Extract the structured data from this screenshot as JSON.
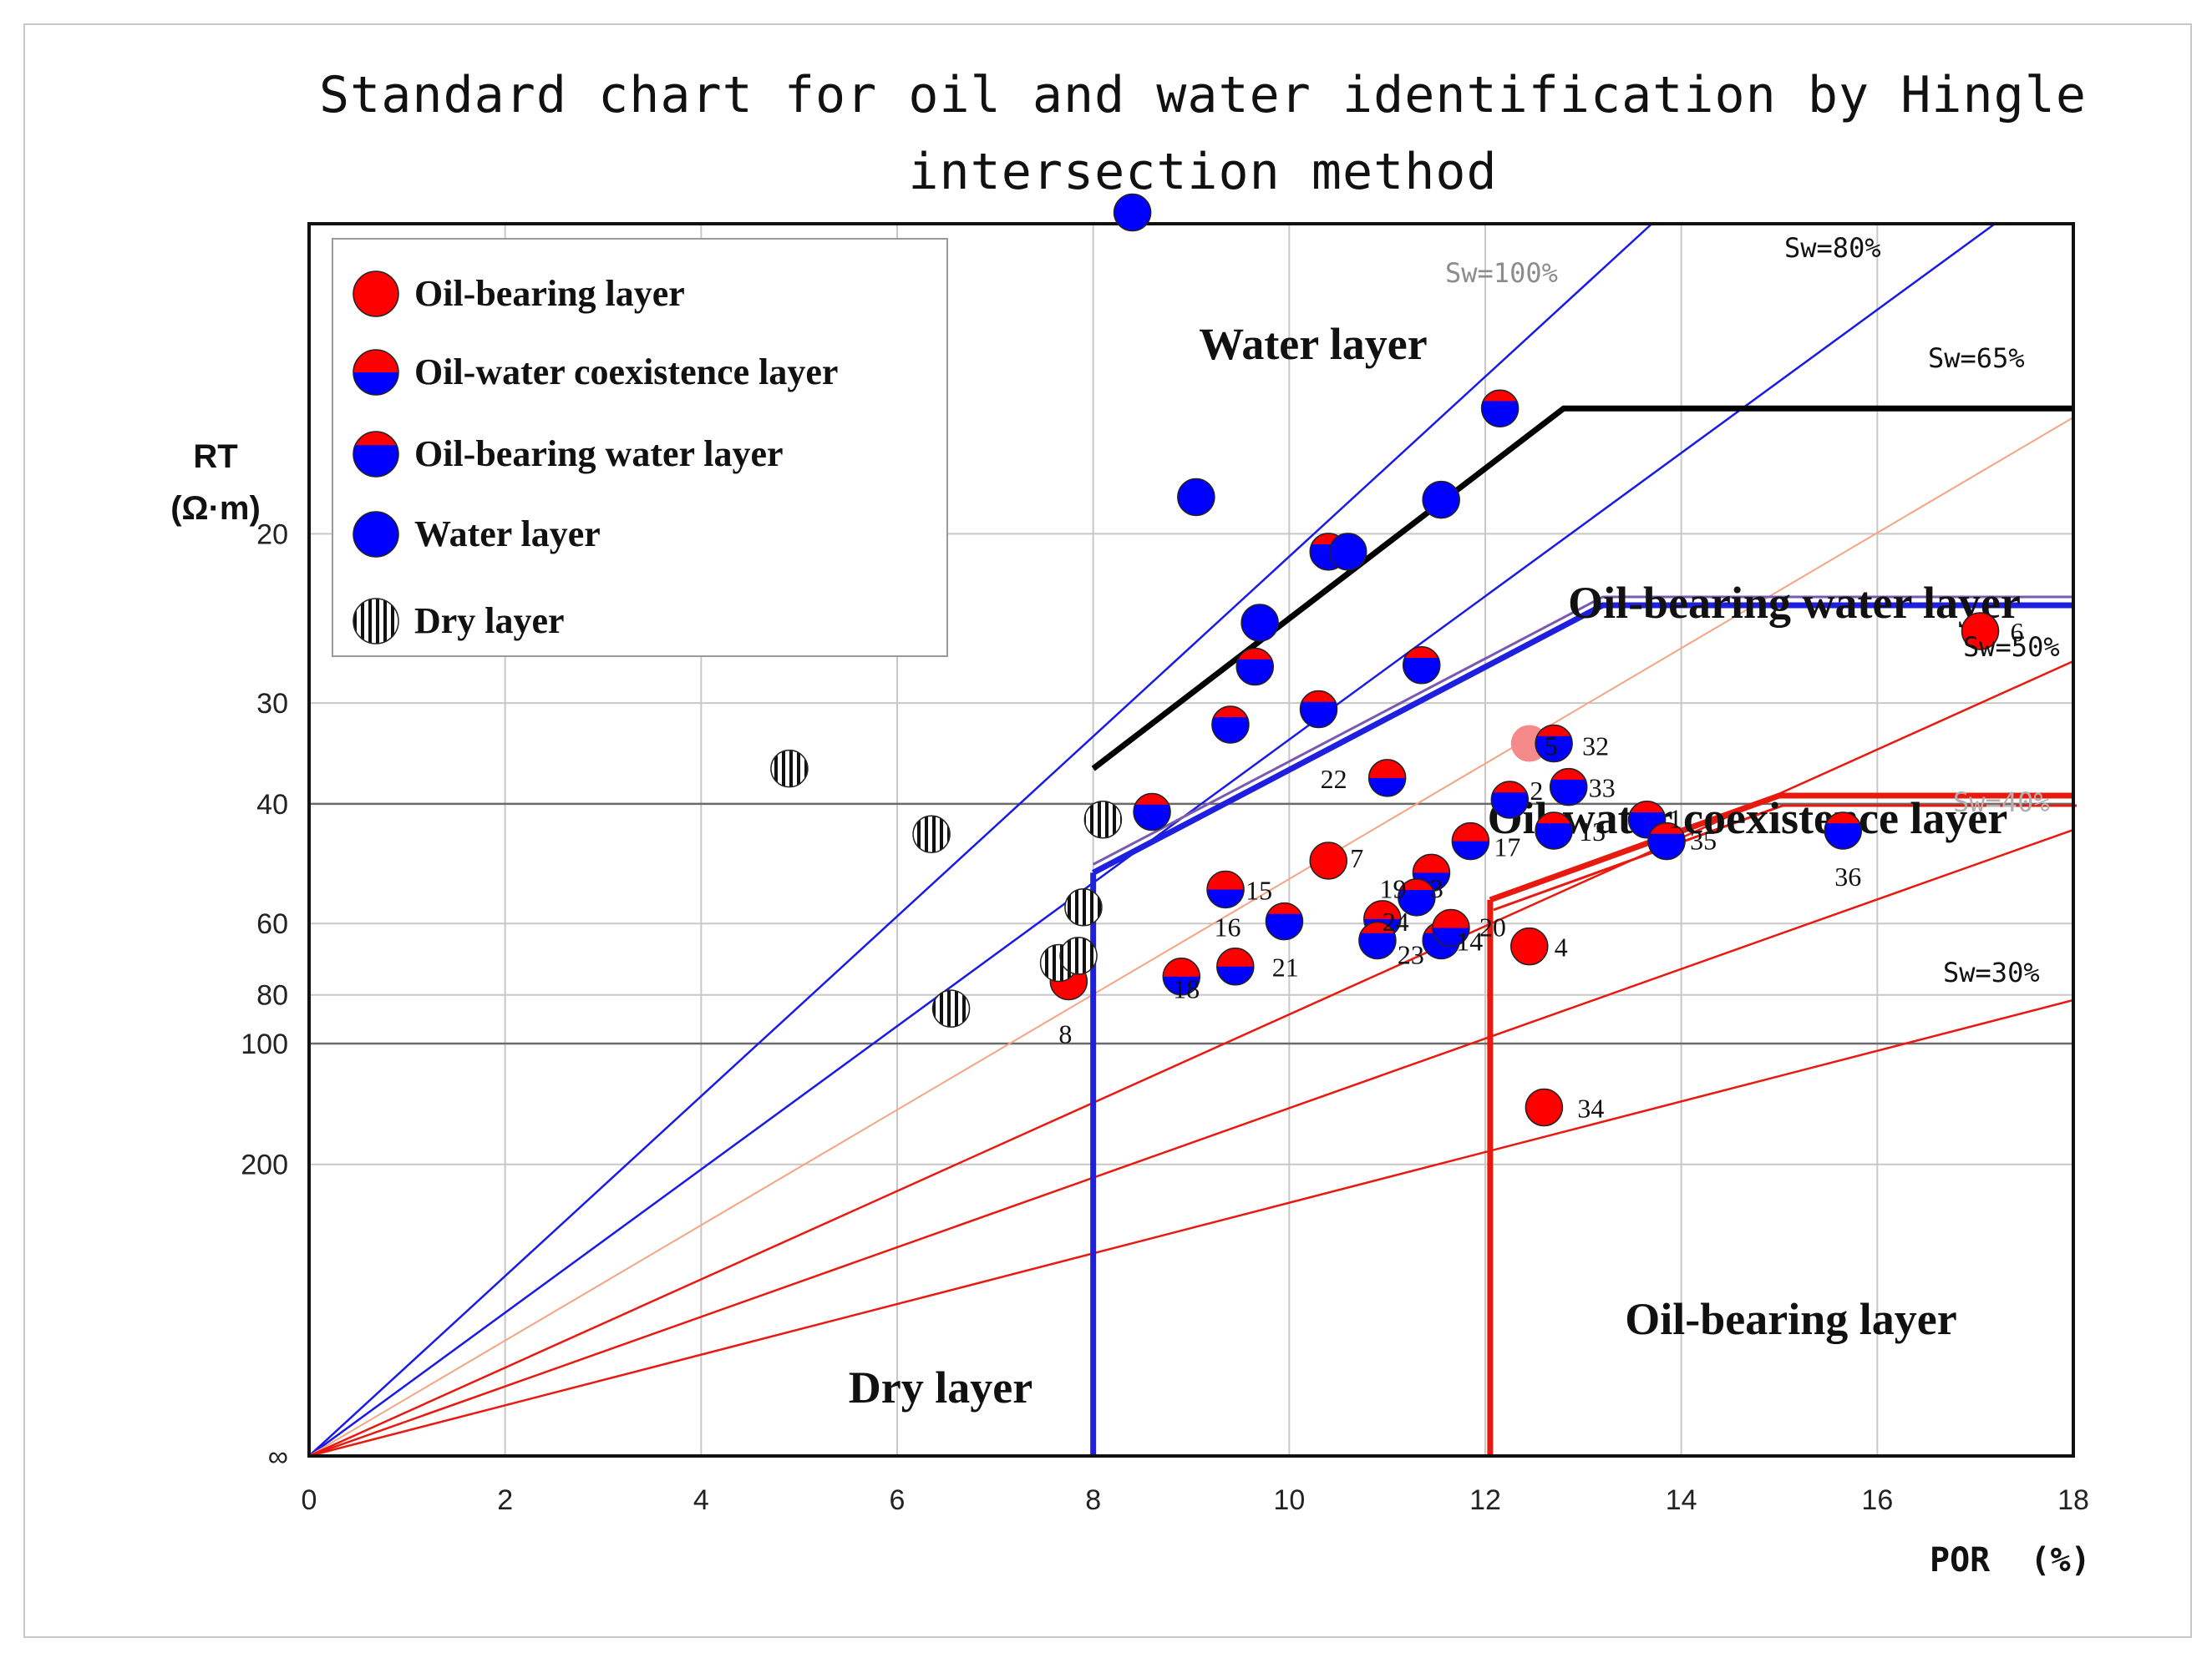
{
  "chart_data": {
    "type": "scatter",
    "title_line1": "Standard chart for oil and water identification by Hingle",
    "title_line2": "intersection method",
    "xlabel": "POR  (%)",
    "ylabel": "RT",
    "ylabel_unit": "(Ω·m)",
    "xlim": [
      0,
      18
    ],
    "x_ticks": [
      0,
      2,
      4,
      6,
      8,
      10,
      12,
      14,
      16,
      18
    ],
    "y_scale": "hingle (1/sqrt(RT))",
    "y_ticks": [
      {
        "value": 20,
        "label": "20"
      },
      {
        "value": 30,
        "label": "30"
      },
      {
        "value": 40,
        "label": "40"
      },
      {
        "value": 60,
        "label": "60"
      },
      {
        "value": 80,
        "label": "80"
      },
      {
        "value": 100,
        "label": "100"
      },
      {
        "value": 200,
        "label": "200"
      },
      {
        "value": "inf",
        "label": "∞"
      }
    ],
    "legend": [
      {
        "type": "oil",
        "label": "Oil-bearing layer"
      },
      {
        "type": "coexist",
        "label": "Oil-water coexistence layer"
      },
      {
        "type": "oilwater",
        "label": "Oil-bearing water layer"
      },
      {
        "type": "water",
        "label": "Water layer"
      },
      {
        "type": "dry",
        "label": "Dry layer"
      }
    ],
    "sw_lines": [
      {
        "label": "Sw=100%",
        "color": "#1a1ae6",
        "end_por": 13.7
      },
      {
        "label": "Sw=80%",
        "color": "#1a1ae6",
        "end_por": 17.2
      },
      {
        "label": "Sw=65%",
        "color": "#f4a582",
        "end_por": 18
      },
      {
        "label": "Sw=50%",
        "color": "#e8190f",
        "end_por": 18
      },
      {
        "label": "Sw=40%",
        "color": "#e8190f",
        "end_por": 18
      },
      {
        "label": "Sw=30%",
        "color": "#e8190f",
        "end_por": 18
      }
    ],
    "region_labels": [
      {
        "text": "Water layer"
      },
      {
        "text": "Oil-bearing water layer"
      },
      {
        "text": "Oil-water coexistence layer"
      },
      {
        "text": "Oil-bearing layer"
      },
      {
        "text": "Dry layer"
      }
    ],
    "boundaries": [
      {
        "name": "oil-bearing-water-boundary",
        "color": "#000000",
        "points": [
          [
            8.0,
            36
          ],
          [
            12.8,
            15.5
          ],
          [
            18,
            15.5
          ]
        ]
      },
      {
        "name": "coexistence-boundary",
        "color": "#1f1fe0",
        "points": [
          [
            8.0,
            50
          ],
          [
            13.2,
            23.5
          ],
          [
            18,
            23.5
          ]
        ]
      },
      {
        "name": "dry-cutoff",
        "color": "#1f1fe0",
        "points": [
          [
            8.0,
            50
          ],
          [
            8.0,
            "inf"
          ]
        ]
      },
      {
        "name": "oil-bearing-boundary",
        "color": "#e8190f",
        "points": [
          [
            12.05,
            55
          ],
          [
            15.0,
            39
          ],
          [
            18,
            39
          ]
        ]
      },
      {
        "name": "oil-cutoff",
        "color": "#e8190f",
        "points": [
          [
            12.05,
            55
          ],
          [
            12.05,
            "inf"
          ]
        ]
      }
    ],
    "points": [
      {
        "por": 8.4,
        "rt": 11,
        "type": "water",
        "label": ""
      },
      {
        "por": 9.05,
        "rt": 18.5,
        "type": "water",
        "label": ""
      },
      {
        "por": 12.15,
        "rt": 15.5,
        "type": "oilwater",
        "label": ""
      },
      {
        "por": 11.55,
        "rt": 18.6,
        "type": "water",
        "label": ""
      },
      {
        "por": 10.4,
        "rt": 20.8,
        "type": "oilwater",
        "label": ""
      },
      {
        "por": 10.6,
        "rt": 20.8,
        "type": "water",
        "label": ""
      },
      {
        "por": 9.7,
        "rt": 24.5,
        "type": "water",
        "label": ""
      },
      {
        "por": 9.65,
        "rt": 27.3,
        "type": "oilwater",
        "label": ""
      },
      {
        "por": 11.35,
        "rt": 27.2,
        "type": "oilwater",
        "label": ""
      },
      {
        "por": 9.4,
        "rt": 31.8,
        "type": "oilwater",
        "label": ""
      },
      {
        "por": 10.3,
        "rt": 30.5,
        "type": "oilwater",
        "label": ""
      },
      {
        "por": 11.0,
        "rt": 37.0,
        "type": "coexist",
        "label": "22"
      },
      {
        "por": 12.45,
        "rt": 33.5,
        "type": "oil-faded",
        "label": "5"
      },
      {
        "por": 12.7,
        "rt": 33.5,
        "type": "oilwater",
        "label": "32"
      },
      {
        "por": 12.85,
        "rt": 38.0,
        "type": "oilwater",
        "label": "33"
      },
      {
        "por": 8.6,
        "rt": 41.0,
        "type": "oilwater",
        "label": ""
      },
      {
        "por": 12.25,
        "rt": 39.5,
        "type": "oilwater",
        "label": "2"
      },
      {
        "por": 12.7,
        "rt": 43.5,
        "type": "oilwater",
        "label": "13"
      },
      {
        "por": 13.65,
        "rt": 42.0,
        "type": "oilwater",
        "label": "1"
      },
      {
        "por": 13.85,
        "rt": 45.0,
        "type": "oilwater",
        "label": "35"
      },
      {
        "por": 15.65,
        "rt": 43.5,
        "type": "oilwater",
        "label": "36"
      },
      {
        "por": 17.05,
        "rt": 25.0,
        "type": "oil",
        "label": "6"
      },
      {
        "por": 11.85,
        "rt": 45.0,
        "type": "coexist",
        "label": "17"
      },
      {
        "por": 10.4,
        "rt": 48.0,
        "type": "oil",
        "label": "7"
      },
      {
        "por": 11.45,
        "rt": 50.0,
        "type": "coexist",
        "label": "19"
      },
      {
        "por": 11.3,
        "rt": 54.5,
        "type": "oilwater",
        "label": "3"
      },
      {
        "por": 9.35,
        "rt": 53.0,
        "type": "coexist",
        "label": "15"
      },
      {
        "por": 9.95,
        "rt": 59.5,
        "type": "oilwater",
        "label": "16"
      },
      {
        "por": 10.95,
        "rt": 59.0,
        "type": "coexist",
        "label": "24"
      },
      {
        "por": 10.9,
        "rt": 64.0,
        "type": "oilwater",
        "label": "23"
      },
      {
        "por": 11.55,
        "rt": 64.0,
        "type": "oilwater",
        "label": "14"
      },
      {
        "por": 11.65,
        "rt": 61.0,
        "type": "coexist",
        "label": "20"
      },
      {
        "por": 12.45,
        "rt": 65.5,
        "type": "oil",
        "label": "4"
      },
      {
        "por": 9.45,
        "rt": 71.0,
        "type": "coexist",
        "label": "21"
      },
      {
        "por": 8.9,
        "rt": 74.0,
        "type": "coexist",
        "label": "18"
      },
      {
        "por": 7.75,
        "rt": 75.5,
        "type": "oil",
        "label": "8"
      },
      {
        "por": 12.6,
        "rt": 140.0,
        "type": "oil",
        "label": "34"
      },
      {
        "por": 4.9,
        "rt": 36.0,
        "type": "dry",
        "label": ""
      },
      {
        "por": 6.35,
        "rt": 44.0,
        "type": "dry",
        "label": ""
      },
      {
        "por": 8.1,
        "rt": 42.0,
        "type": "dry",
        "label": ""
      },
      {
        "por": 7.9,
        "rt": 56.5,
        "type": "dry",
        "label": ""
      },
      {
        "por": 7.65,
        "rt": 70.0,
        "type": "dry",
        "label": ""
      },
      {
        "por": 7.85,
        "rt": 68.0,
        "type": "dry",
        "label": ""
      },
      {
        "por": 6.55,
        "rt": 85.0,
        "type": "dry",
        "label": ""
      }
    ],
    "colors": {
      "oil": "#ff0000",
      "water": "#0000ff",
      "oil_faded": "#f48a8a",
      "grid": "#c8c8c8"
    }
  }
}
